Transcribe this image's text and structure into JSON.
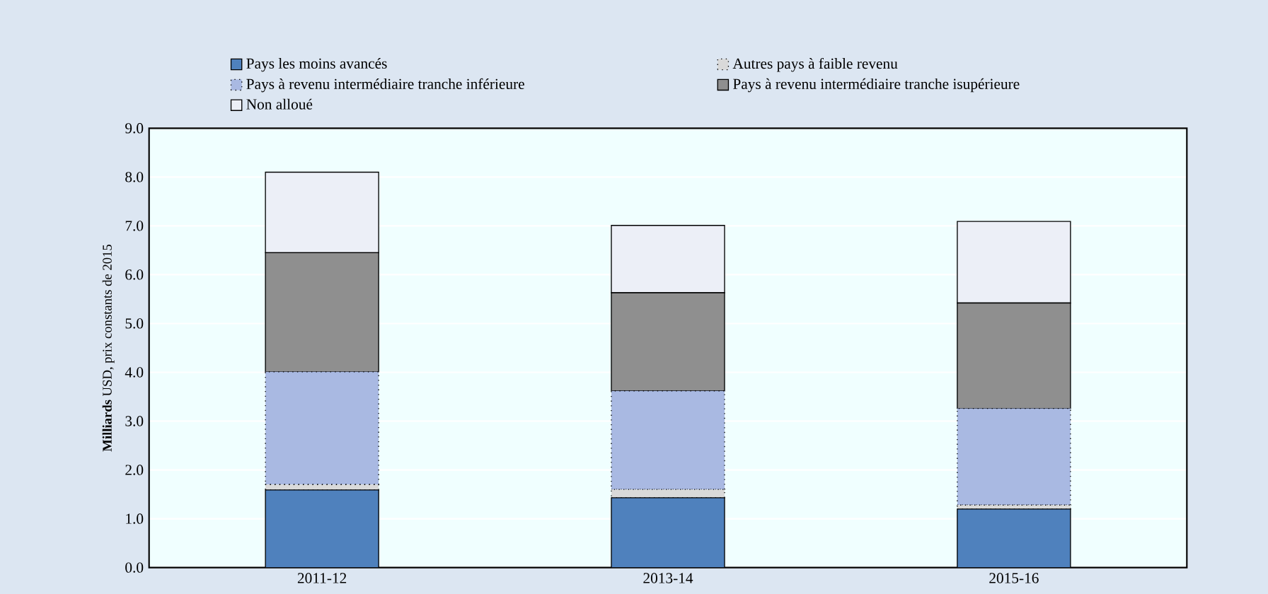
{
  "chart_data": {
    "type": "bar",
    "stacked": true,
    "ylabel": "**Milliards** USD, prix constants de 2015",
    "categories": [
      "2011-12",
      "2013-14",
      "2015-16"
    ],
    "series": [
      {
        "name": "Pays les moins avancés",
        "color": "#4f81bd",
        "values": [
          1.59,
          1.43,
          1.2
        ]
      },
      {
        "name": "Autres pays à faible revenu",
        "color": "#d9d9d9",
        "values": [
          0.11,
          0.17,
          0.08
        ]
      },
      {
        "name": "Pays à revenu intermédiaire tranche inférieure",
        "color": "#a9b9e2",
        "values": [
          2.31,
          2.02,
          1.98
        ]
      },
      {
        "name": "Pays à revenu intermédiaire tranche isupérieure",
        "color": "#8f8f8f",
        "values": [
          2.44,
          2.01,
          2.16
        ]
      },
      {
        "name": "Non alloué",
        "color": "#eceff7",
        "values": [
          1.65,
          1.38,
          1.67
        ]
      }
    ],
    "ylim": [
      0,
      9
    ],
    "yticks": [
      {
        "value": 0,
        "label": "0.0"
      },
      {
        "value": 1,
        "label": "1.0"
      },
      {
        "value": 2,
        "label": "2.0"
      },
      {
        "value": 3,
        "label": "3.0"
      },
      {
        "value": 4,
        "label": "4.0"
      },
      {
        "value": 5,
        "label": "5.0"
      },
      {
        "value": 6,
        "label": "6.0"
      },
      {
        "value": 7,
        "label": "7.0"
      },
      {
        "value": 8,
        "label": "8.0"
      },
      {
        "value": 9,
        "label": "9.0"
      }
    ],
    "grid": "y",
    "legend": "top"
  }
}
